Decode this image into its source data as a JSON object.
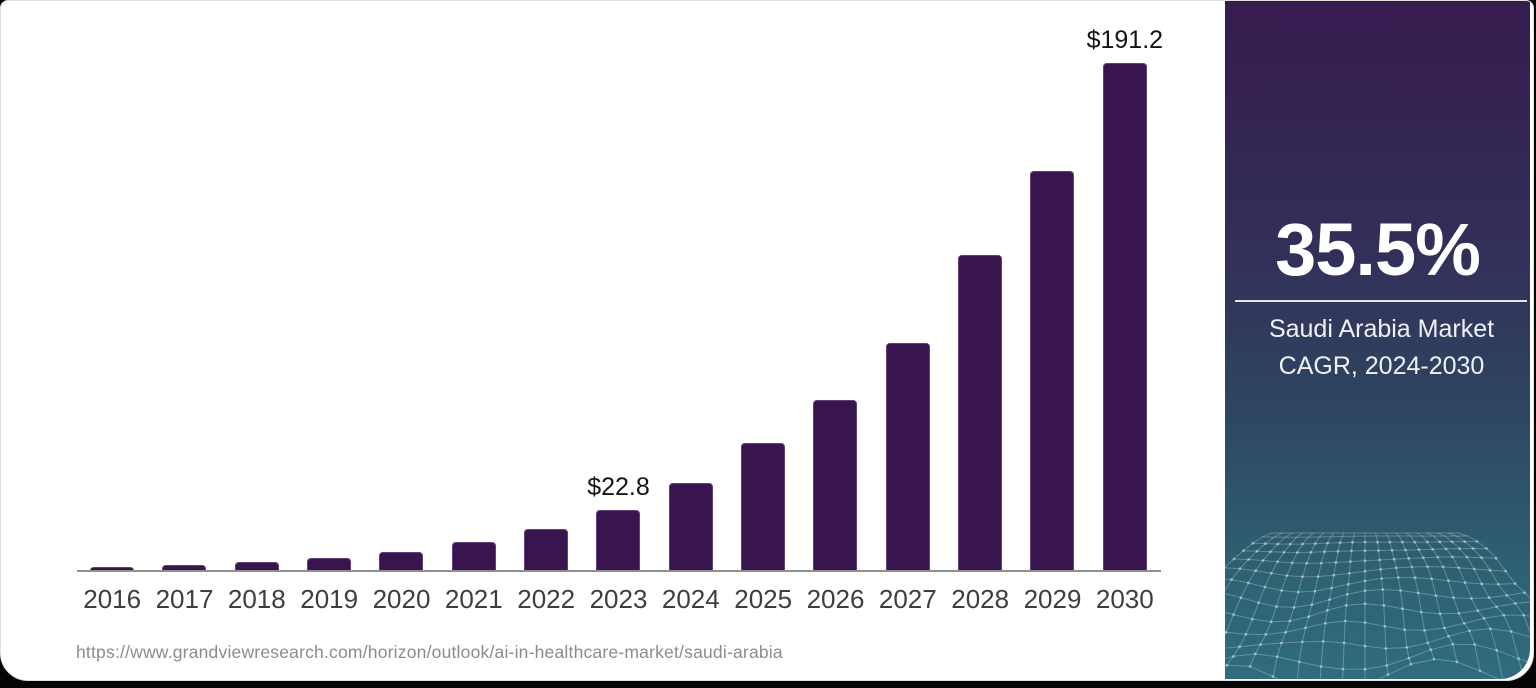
{
  "page": {
    "background_color": "#050505",
    "card_background": "#ffffff"
  },
  "chart_data": {
    "type": "bar",
    "title": "",
    "xlabel": "",
    "ylabel": "",
    "categories": [
      "2016",
      "2017",
      "2018",
      "2019",
      "2020",
      "2021",
      "2022",
      "2023",
      "2024",
      "2025",
      "2026",
      "2027",
      "2028",
      "2029",
      "2030"
    ],
    "values": [
      1.5,
      2.1,
      3.3,
      4.8,
      7.3,
      10.8,
      15.8,
      22.8,
      33.2,
      48.0,
      64.5,
      86.0,
      119.0,
      150.5,
      191.2
    ],
    "value_labels": {
      "2023": "$22.8",
      "2030": "$191.2"
    },
    "ylim": [
      0,
      191.2
    ],
    "grid": false,
    "legend": "none",
    "bar_color": "#38154e",
    "axis_color": "#8f8f8f",
    "tick_label_color": "#3e3e3e",
    "value_label_color": "#141414"
  },
  "source": {
    "url_text": "https://www.grandviewresearch.com/horizon/outlook/ai-in-healthcare-market/saudi-arabia",
    "text_color": "#8c8c8c"
  },
  "side_panel": {
    "stat_value": "35.5%",
    "caption_line1": "Saudi Arabia Market",
    "caption_line2": "CAGR, 2024-2030",
    "text_color": "#ffffff",
    "gradient": [
      "#361b4f",
      "#323059",
      "#2e4a63",
      "#2e6374",
      "#2f6c7e"
    ],
    "divider_color": "rgba(255,255,255,0.88)",
    "mesh": {
      "line_color": "rgba(222,238,243,0.30)",
      "dot_color": "rgba(222,238,243,0.50)"
    }
  }
}
